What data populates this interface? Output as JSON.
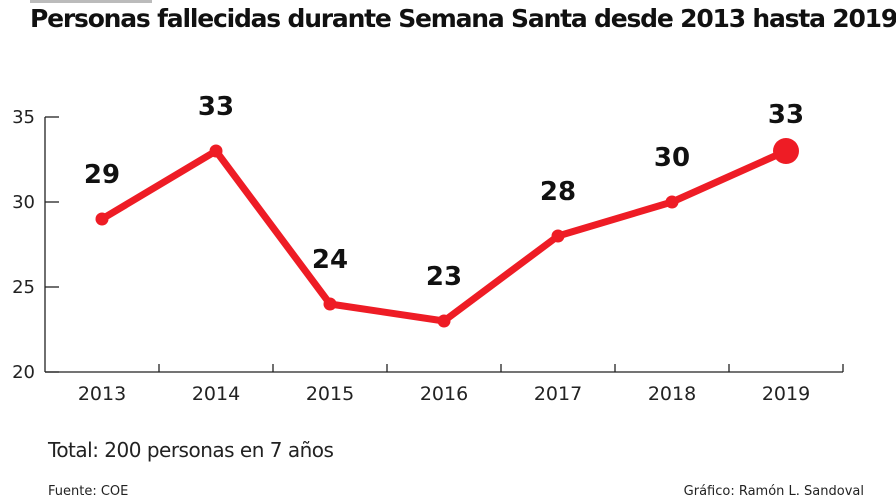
{
  "chart_data": {
    "type": "line",
    "title": "Personas fallecidas durante Semana Santa desde 2013 hasta 2019",
    "categories": [
      "2013",
      "2014",
      "2015",
      "2016",
      "2017",
      "2018",
      "2019"
    ],
    "values": [
      29,
      33,
      24,
      23,
      28,
      30,
      33
    ],
    "ylim": [
      20,
      35
    ],
    "yticks": [
      20,
      25,
      30,
      35
    ],
    "xlabel": "",
    "ylabel": "",
    "grid": false,
    "line_color": "#ee1c25",
    "highlight_last": true
  },
  "footer": {
    "total": "Total: 200 personas en 7 años",
    "source": "Fuente: COE",
    "credit": "Gráfico: Ramón  L. Sandoval"
  }
}
